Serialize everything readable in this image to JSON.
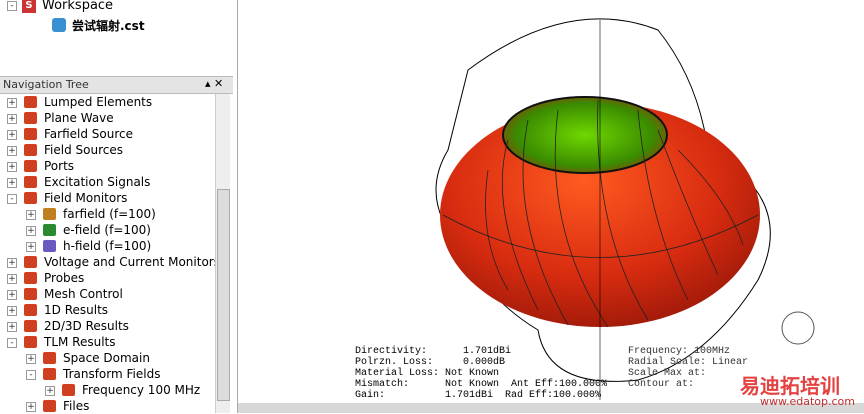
{
  "workspace": {
    "title": "Workspace",
    "file": "尝试辐射.cst"
  },
  "navigation_tree": {
    "title": "Navigation Tree",
    "items": [
      {
        "label": "Lumped Elements"
      },
      {
        "label": "Plane Wave"
      },
      {
        "label": "Farfield Source"
      },
      {
        "label": "Field Sources"
      },
      {
        "label": "Ports"
      },
      {
        "label": "Excitation Signals"
      },
      {
        "label": "Field Monitors",
        "children": [
          {
            "label": "farfield (f=100)"
          },
          {
            "label": "e-field (f=100)"
          },
          {
            "label": "h-field (f=100)"
          }
        ]
      },
      {
        "label": "Voltage and Current Monitors"
      },
      {
        "label": "Probes"
      },
      {
        "label": "Mesh Control"
      },
      {
        "label": "1D Results"
      },
      {
        "label": "2D/3D Results"
      },
      {
        "label": "TLM Results",
        "children": [
          {
            "label": "Space Domain"
          },
          {
            "label": "Transform Fields",
            "children": [
              {
                "label": "Frequency 100 MHz"
              }
            ]
          },
          {
            "label": "Files"
          }
        ]
      }
    ]
  },
  "results_info": {
    "lines": [
      "Directivity:      1.701dBi",
      "Polrzn. Loss:     0.000dB",
      "Material Loss: Not Known",
      "Mismatch:      Not Known  Ant Eff:100.000%",
      "Gain:          1.701dBi  Rad Eff:100.000%"
    ],
    "plot_lines": [
      "Frequency: 100MHz",
      "Radial Scale: Linear",
      "Scale Max at:",
      "Contour at:"
    ]
  },
  "watermark": {
    "brand": "易迪拓培训",
    "url": "www.edatop.com"
  }
}
